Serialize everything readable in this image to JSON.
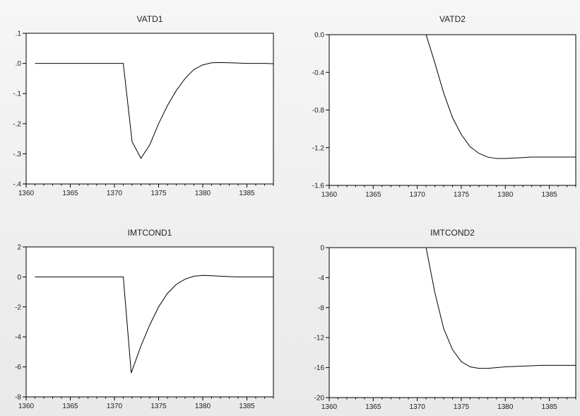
{
  "chart_data": [
    {
      "type": "line",
      "title": "VATD1",
      "xlabel": "",
      "ylabel": "",
      "xlim": [
        1360,
        1388
      ],
      "ylim": [
        -0.4,
        0.1
      ],
      "x_ticks": [
        1360,
        1365,
        1370,
        1375,
        1380,
        1385
      ],
      "x_tick_labels": [
        "1360",
        "1365",
        "1370",
        "1375",
        "1380",
        "1385"
      ],
      "y_ticks": [
        0.1,
        0.0,
        -0.1,
        -0.2,
        -0.3,
        -0.4
      ],
      "y_tick_labels": [
        ".1",
        ".0",
        "-.1",
        "-.2",
        "-.3",
        "-.4"
      ],
      "grid": false,
      "series": [
        {
          "x": [
            1361,
            1365,
            1370,
            1371,
            1372,
            1373,
            1374,
            1375,
            1376,
            1377,
            1378,
            1379,
            1380,
            1381,
            1382,
            1383,
            1384,
            1385,
            1386,
            1387,
            1388
          ],
          "values": [
            0.0,
            0.0,
            0.0,
            0.0,
            -0.26,
            -0.315,
            -0.27,
            -0.2,
            -0.14,
            -0.09,
            -0.05,
            -0.02,
            -0.005,
            0.002,
            0.003,
            0.002,
            0.001,
            0.0,
            0.0,
            0.0,
            -0.001
          ]
        }
      ]
    },
    {
      "type": "line",
      "title": "VATD2",
      "xlabel": "",
      "ylabel": "",
      "xlim": [
        1360,
        1388
      ],
      "ylim": [
        -1.6,
        0.0
      ],
      "x_ticks": [
        1360,
        1365,
        1370,
        1375,
        1380,
        1385
      ],
      "x_tick_labels": [
        "1360",
        "1365",
        "1370",
        "1375",
        "1380",
        "1385"
      ],
      "y_ticks": [
        0.0,
        -0.4,
        -0.8,
        -1.2,
        -1.6
      ],
      "y_tick_labels": [
        "0.0",
        "-0.4",
        "-0.8",
        "-1.2",
        "-1.6"
      ],
      "grid": false,
      "series": [
        {
          "x": [
            1361,
            1365,
            1370,
            1371,
            1372,
            1373,
            1374,
            1375,
            1376,
            1377,
            1378,
            1379,
            1380,
            1381,
            1382,
            1383,
            1384,
            1385,
            1386,
            1387,
            1388
          ],
          "values": [
            0.0,
            0.0,
            0.0,
            0.0,
            -0.3,
            -0.62,
            -0.88,
            -1.06,
            -1.19,
            -1.26,
            -1.3,
            -1.315,
            -1.315,
            -1.31,
            -1.305,
            -1.3,
            -1.3,
            -1.3,
            -1.3,
            -1.3,
            -1.3
          ]
        }
      ]
    },
    {
      "type": "line",
      "title": "IMTCOND1",
      "xlabel": "",
      "ylabel": "",
      "xlim": [
        1360,
        1388
      ],
      "ylim": [
        -8,
        2
      ],
      "x_ticks": [
        1360,
        1365,
        1370,
        1375,
        1380,
        1385
      ],
      "x_tick_labels": [
        "1360",
        "1365",
        "1370",
        "1375",
        "1380",
        "1385"
      ],
      "y_ticks": [
        2,
        0,
        -2,
        -4,
        -6,
        -8
      ],
      "y_tick_labels": [
        "2",
        "0",
        "-2",
        "-4",
        "-6",
        "-8"
      ],
      "grid": false,
      "series": [
        {
          "x": [
            1361,
            1365,
            1370,
            1371,
            1371.9,
            1373,
            1374,
            1375,
            1376,
            1377,
            1378,
            1379,
            1380,
            1381,
            1382,
            1383,
            1384,
            1385,
            1386,
            1387,
            1388
          ],
          "values": [
            0.0,
            0.0,
            0.0,
            0.0,
            -6.4,
            -4.6,
            -3.2,
            -2.0,
            -1.1,
            -0.5,
            -0.15,
            0.05,
            0.1,
            0.08,
            0.05,
            0.02,
            0.0,
            0.0,
            0.0,
            0.0,
            0.0
          ]
        }
      ]
    },
    {
      "type": "line",
      "title": "IMTCOND2",
      "xlabel": "",
      "ylabel": "",
      "xlim": [
        1360,
        1388
      ],
      "ylim": [
        -20,
        0
      ],
      "x_ticks": [
        1360,
        1365,
        1370,
        1375,
        1380,
        1385
      ],
      "x_tick_labels": [
        "1360",
        "1365",
        "1370",
        "1375",
        "1380",
        "1385"
      ],
      "y_ticks": [
        0,
        -4,
        -8,
        -12,
        -16,
        -20
      ],
      "y_tick_labels": [
        "0",
        "-4",
        "-8",
        "-12",
        "-16",
        "-20"
      ],
      "grid": false,
      "series": [
        {
          "x": [
            1361,
            1365,
            1370,
            1371,
            1372,
            1373,
            1374,
            1375,
            1376,
            1377,
            1378,
            1379,
            1380,
            1381,
            1382,
            1383,
            1384,
            1385,
            1386,
            1387,
            1388
          ],
          "values": [
            0.0,
            0.0,
            0.0,
            0.0,
            -6.0,
            -10.8,
            -13.6,
            -15.2,
            -15.9,
            -16.1,
            -16.1,
            -16.0,
            -15.9,
            -15.85,
            -15.8,
            -15.75,
            -15.7,
            -15.7,
            -15.7,
            -15.7,
            -15.7
          ]
        }
      ]
    }
  ]
}
